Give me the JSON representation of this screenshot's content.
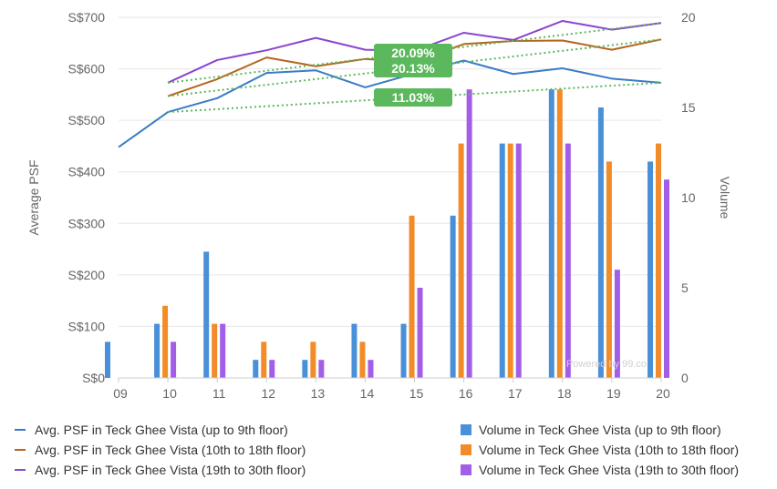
{
  "chart_data": {
    "type": "bar+line",
    "x": [
      "09",
      "10",
      "11",
      "12",
      "13",
      "14",
      "15",
      "16",
      "17",
      "18",
      "19",
      "20"
    ],
    "left_axis": {
      "label": "Average PSF",
      "ticks": [
        "S$0",
        "S$100",
        "S$200",
        "S$300",
        "S$400",
        "S$500",
        "S$600",
        "S$700"
      ],
      "range": [
        0,
        700
      ]
    },
    "right_axis": {
      "label": "Volume",
      "ticks": [
        "0",
        "5",
        "10",
        "15",
        "20"
      ],
      "range": [
        0,
        20
      ]
    },
    "line_series": [
      {
        "name": "Avg. PSF in Teck Ghee Vista (up to 9th floor)",
        "color": "#3a7bc8",
        "values": [
          448,
          516,
          543,
          592,
          597,
          564,
          591,
          616,
          590,
          601,
          581,
          573
        ]
      },
      {
        "name": "Avg. PSF in Teck Ghee Vista (10th to 18th floor)",
        "color": "#b5651d",
        "values": [
          null,
          547,
          580,
          622,
          605,
          619,
          614,
          648,
          654,
          655,
          637,
          657
        ]
      },
      {
        "name": "Avg. PSF in Teck Ghee Vista (19th to 30th floor)",
        "color": "#8b45cf",
        "values": [
          null,
          573,
          617,
          636,
          660,
          637,
          635,
          670,
          656,
          693,
          676,
          689
        ]
      }
    ],
    "bar_series": [
      {
        "name": "Volume in Teck Ghee Vista (up to 9th floor)",
        "color": "#4a90d9",
        "values": [
          2,
          3,
          7,
          1,
          1,
          3,
          3,
          9,
          13,
          16,
          15,
          12
        ]
      },
      {
        "name": "Volume in Teck Ghee Vista (10th to 18th floor)",
        "color": "#f28c28",
        "values": [
          0,
          4,
          3,
          2,
          2,
          2,
          9,
          13,
          13,
          16,
          12,
          13
        ]
      },
      {
        "name": "Volume in Teck Ghee Vista (19th to 30th floor)",
        "color": "#a35ee8",
        "values": [
          0,
          2,
          3,
          1,
          1,
          1,
          5,
          16,
          13,
          13,
          6,
          11
        ]
      }
    ],
    "trendlines": [
      {
        "from_x": "10",
        "from_psf": 516,
        "to_x": "20",
        "to_psf": 573
      },
      {
        "from_x": "10",
        "from_psf": 547,
        "to_x": "20",
        "to_psf": 657
      },
      {
        "from_x": "10",
        "from_psf": 573,
        "to_x": "20",
        "to_psf": 689
      }
    ],
    "trendline_color": "#5cb85c",
    "annotations": [
      "20.09%",
      "20.13%",
      "11.03%"
    ],
    "annotation_color": "#5cb85c",
    "credit": "Powered by 99.co",
    "legend_position": "bottom"
  }
}
